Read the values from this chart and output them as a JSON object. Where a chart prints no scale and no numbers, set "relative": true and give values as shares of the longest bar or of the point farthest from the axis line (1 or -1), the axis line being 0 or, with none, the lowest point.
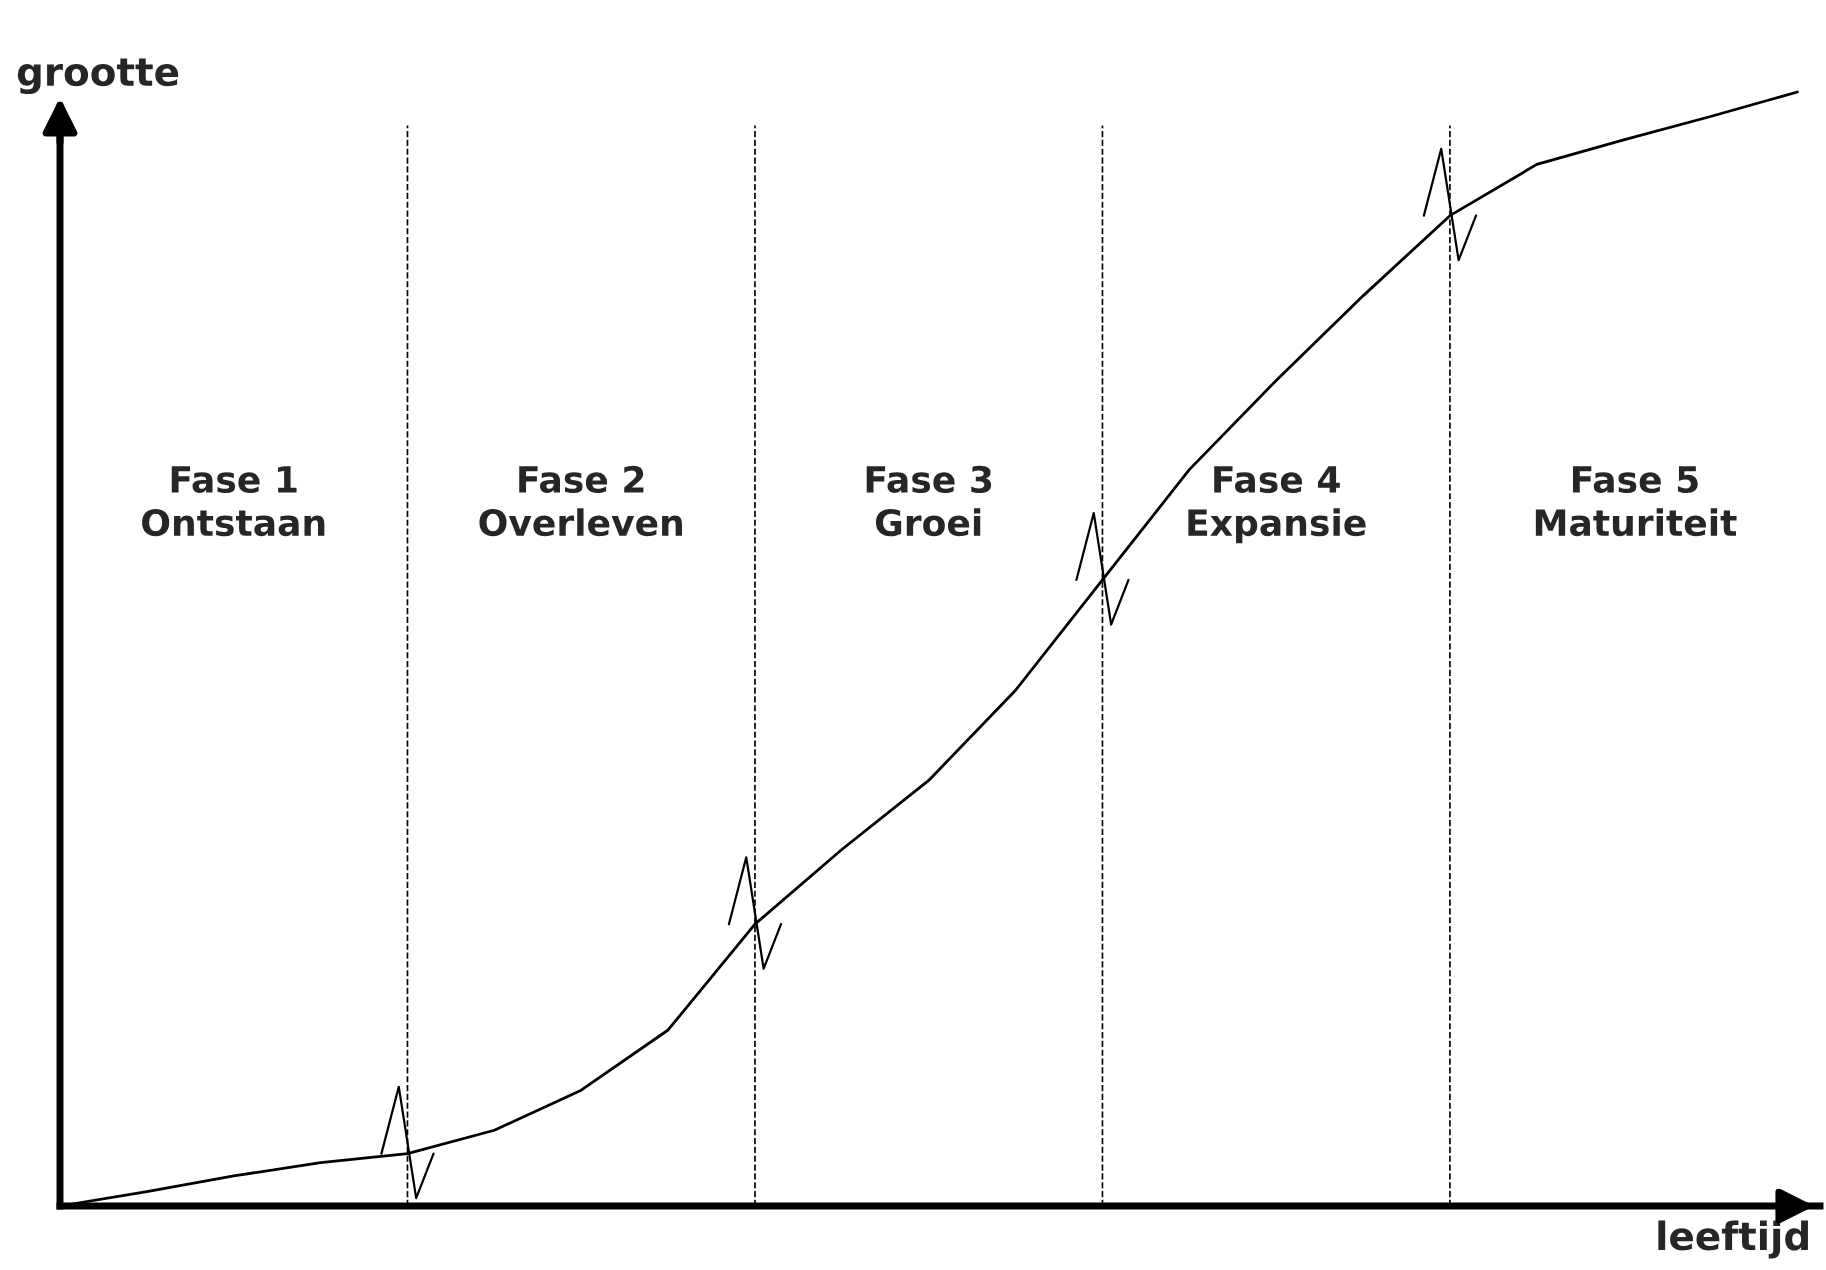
{
  "chart_data": {
    "type": "line",
    "relative": true,
    "xlabel": "leeftijd",
    "ylabel": "grootte",
    "legend": false,
    "marker": "none",
    "line_style": "solid",
    "categories": [
      null,
      null,
      null,
      null,
      null,
      null,
      null,
      null,
      null,
      null,
      null,
      null,
      null,
      null,
      null,
      null,
      null,
      null,
      null,
      null,
      null
    ],
    "series": [
      {
        "color": "#000000",
        "values": [
          0,
          0.013,
          0.027,
          0.039,
          0.047,
          0.068,
          0.104,
          0.158,
          0.253,
          0.32,
          0.382,
          0.463,
          0.562,
          0.661,
          0.741,
          0.817,
          0.889,
          0.935,
          0.957,
          0.978,
          1.0
        ]
      }
    ],
    "grid": "x",
    "annotations": [
      "Fase 1\nOntstaan",
      "Fase 2\nOverleven",
      "Fase 3\nGroei",
      "Fase 4\nExpansie",
      "Fase 5\nMaturiteit"
    ]
  }
}
